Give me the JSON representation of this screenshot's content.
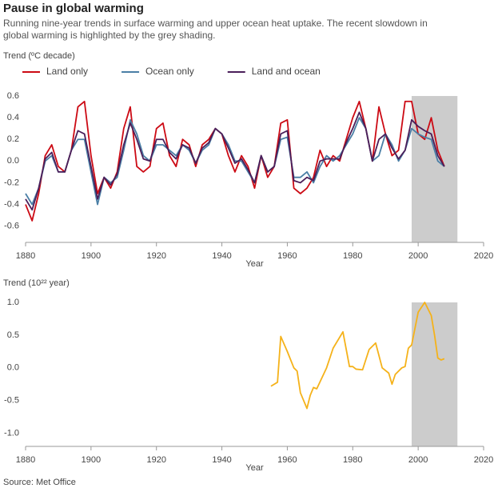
{
  "title": "Pause in global warming",
  "subtitle": "Running nine-year trends in surface warming and upper ocean heat uptake. The recent slowdown in global warming is highlighted by the grey shading.",
  "source": "Source: Met Office",
  "chart_data": [
    {
      "type": "line",
      "y_label": "Trend (ºC decade)",
      "x_label": "Year",
      "x": [
        1880,
        1882,
        1884,
        1886,
        1888,
        1890,
        1892,
        1894,
        1896,
        1898,
        1900,
        1902,
        1904,
        1906,
        1908,
        1910,
        1912,
        1914,
        1916,
        1918,
        1920,
        1922,
        1924,
        1926,
        1928,
        1930,
        1932,
        1934,
        1936,
        1938,
        1940,
        1942,
        1944,
        1946,
        1948,
        1950,
        1952,
        1954,
        1956,
        1958,
        1960,
        1962,
        1964,
        1966,
        1968,
        1970,
        1972,
        1974,
        1976,
        1978,
        1980,
        1982,
        1984,
        1986,
        1988,
        1990,
        1992,
        1994,
        1996,
        1998,
        2000,
        2002,
        2004,
        2006,
        2008
      ],
      "series": [
        {
          "name": "Land only",
          "color": "#cc0a14",
          "values": [
            -0.4,
            -0.55,
            -0.3,
            0.05,
            0.15,
            -0.05,
            -0.1,
            0.1,
            0.5,
            0.55,
            0.05,
            -0.3,
            -0.15,
            -0.25,
            -0.1,
            0.3,
            0.5,
            -0.05,
            -0.1,
            -0.05,
            0.3,
            0.35,
            0.05,
            -0.05,
            0.2,
            0.15,
            -0.05,
            0.15,
            0.2,
            0.3,
            0.25,
            0.05,
            -0.1,
            0.05,
            -0.05,
            -0.25,
            0.05,
            -0.15,
            -0.05,
            0.35,
            0.38,
            -0.25,
            -0.3,
            -0.25,
            -0.15,
            0.1,
            -0.05,
            0.05,
            0.0,
            0.2,
            0.4,
            0.55,
            0.3,
            0.0,
            0.5,
            0.25,
            0.05,
            0.1,
            0.55,
            0.55,
            0.25,
            0.2,
            0.4,
            0.1,
            -0.05
          ]
        },
        {
          "name": "Ocean only",
          "color": "#4a7fa6",
          "values": [
            -0.3,
            -0.4,
            -0.25,
            0.0,
            0.05,
            -0.1,
            -0.1,
            0.1,
            0.2,
            0.2,
            -0.1,
            -0.4,
            -0.15,
            -0.2,
            -0.15,
            0.1,
            0.38,
            0.25,
            0.05,
            0.0,
            0.15,
            0.15,
            0.1,
            0.05,
            0.15,
            0.1,
            -0.02,
            0.1,
            0.15,
            0.3,
            0.25,
            0.15,
            0.0,
            0.0,
            -0.1,
            -0.2,
            0.05,
            -0.1,
            -0.05,
            0.2,
            0.22,
            -0.15,
            -0.15,
            -0.1,
            -0.2,
            -0.05,
            0.05,
            0.0,
            0.05,
            0.15,
            0.25,
            0.4,
            0.3,
            0.0,
            0.05,
            0.25,
            0.15,
            0.0,
            0.1,
            0.3,
            0.25,
            0.22,
            0.2,
            0.0,
            -0.05
          ]
        },
        {
          "name": "Land and ocean",
          "color": "#4b1f5a",
          "values": [
            -0.35,
            -0.45,
            -0.25,
            0.02,
            0.08,
            -0.1,
            -0.1,
            0.1,
            0.28,
            0.25,
            -0.05,
            -0.35,
            -0.15,
            -0.22,
            -0.12,
            0.15,
            0.35,
            0.2,
            0.02,
            0.0,
            0.2,
            0.2,
            0.08,
            0.02,
            0.15,
            0.12,
            -0.02,
            0.12,
            0.17,
            0.3,
            0.25,
            0.12,
            -0.02,
            0.02,
            -0.08,
            -0.2,
            0.05,
            -0.1,
            -0.05,
            0.25,
            0.28,
            -0.18,
            -0.2,
            -0.15,
            -0.18,
            0.0,
            0.02,
            0.02,
            0.02,
            0.17,
            0.3,
            0.45,
            0.3,
            0.0,
            0.2,
            0.25,
            0.12,
            0.02,
            0.1,
            0.38,
            0.32,
            0.28,
            0.25,
            0.05,
            -0.05
          ]
        }
      ],
      "xlim": [
        1880,
        2020
      ],
      "xticks": [
        1880,
        1900,
        1920,
        1940,
        1960,
        1980,
        2000,
        2020
      ],
      "ylim": [
        -0.75,
        0.6
      ],
      "yticks": [
        0.6,
        0.4,
        0.2,
        {
          "value": 0,
          "label": "0.0"
        },
        -0.2,
        -0.4,
        -0.6
      ],
      "shade": {
        "from": 1998,
        "to": 2012,
        "color": "#cccccc"
      },
      "legend": "top-left"
    },
    {
      "type": "line",
      "y_label": "Trend (10²² year)",
      "x_label": "Year",
      "x": [
        1955,
        1957,
        1958,
        1960,
        1962,
        1963,
        1964,
        1966,
        1967,
        1968,
        1969,
        1972,
        1974,
        1977,
        1979,
        1980,
        1981,
        1983,
        1985,
        1987,
        1989,
        1991,
        1992,
        1993,
        1995,
        1996,
        1997,
        1998,
        2000,
        2002,
        2004,
        2005,
        2006,
        2007,
        2008
      ],
      "series": [
        {
          "color": "#f5b21a",
          "values": [
            -0.28,
            -0.22,
            0.48,
            0.25,
            0.0,
            -0.05,
            -0.38,
            -0.62,
            -0.42,
            -0.3,
            -0.32,
            0.0,
            0.3,
            0.55,
            0.02,
            0.02,
            -0.02,
            -0.03,
            0.28,
            0.38,
            0.0,
            -0.08,
            -0.25,
            -0.1,
            0.0,
            0.02,
            0.3,
            0.35,
            0.85,
            1.0,
            0.8,
            0.5,
            0.15,
            0.12,
            0.14
          ]
        }
      ],
      "xlim": [
        1880,
        2020
      ],
      "xticks": [
        1880,
        1900,
        1920,
        1940,
        1960,
        1980,
        2000,
        2020
      ],
      "ylim": [
        -1.2,
        1.0
      ],
      "yticks": [
        {
          "value": 1,
          "label": "1.0"
        },
        0.5,
        {
          "value": 0,
          "label": "0.0"
        },
        -0.5,
        {
          "value": -1,
          "label": "-1.0"
        }
      ],
      "shade": {
        "from": 1998,
        "to": 2012,
        "color": "#cccccc"
      }
    }
  ]
}
